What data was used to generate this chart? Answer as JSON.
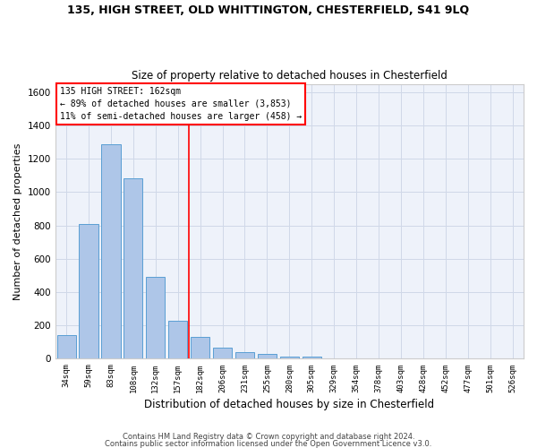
{
  "title_line1": "135, HIGH STREET, OLD WHITTINGTON, CHESTERFIELD, S41 9LQ",
  "title_line2": "Size of property relative to detached houses in Chesterfield",
  "xlabel": "Distribution of detached houses by size in Chesterfield",
  "ylabel": "Number of detached properties",
  "footer_line1": "Contains HM Land Registry data © Crown copyright and database right 2024.",
  "footer_line2": "Contains public sector information licensed under the Open Government Licence v3.0.",
  "categories": [
    "34sqm",
    "59sqm",
    "83sqm",
    "108sqm",
    "132sqm",
    "157sqm",
    "182sqm",
    "206sqm",
    "231sqm",
    "255sqm",
    "280sqm",
    "305sqm",
    "329sqm",
    "354sqm",
    "378sqm",
    "403sqm",
    "428sqm",
    "452sqm",
    "477sqm",
    "501sqm",
    "526sqm"
  ],
  "values": [
    140,
    810,
    1285,
    1085,
    490,
    230,
    130,
    68,
    40,
    28,
    15,
    12,
    5,
    3,
    2,
    2,
    1,
    1,
    1,
    1,
    2
  ],
  "bar_color": "#aec6e8",
  "bar_edge_color": "#5a9fd4",
  "grid_color": "#d0d8e8",
  "background_color": "#eef2fa",
  "vline_color": "red",
  "vline_xindex": 5.5,
  "annotation_line1": "135 HIGH STREET: 162sqm",
  "annotation_line2": "← 89% of detached houses are smaller (3,853)",
  "annotation_line3": "11% of semi-detached houses are larger (458) →",
  "ylim": [
    0,
    1650
  ],
  "yticks": [
    0,
    200,
    400,
    600,
    800,
    1000,
    1200,
    1400,
    1600
  ]
}
